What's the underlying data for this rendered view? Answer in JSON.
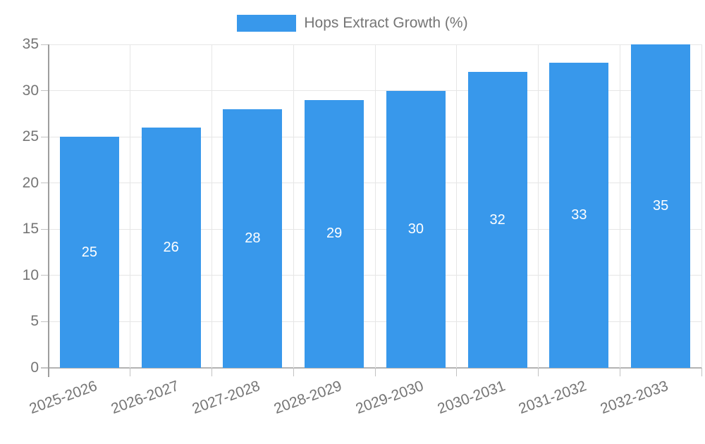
{
  "chart_data": {
    "type": "bar",
    "title": "",
    "legend": {
      "label": "Hops Extract Growth (%)",
      "position": "top"
    },
    "categories": [
      "2025-2026",
      "2026-2027",
      "2027-2028",
      "2028-2029",
      "2029-2030",
      "2030-2031",
      "2031-2032",
      "2032-2033"
    ],
    "series": [
      {
        "name": "Hops Extract Growth (%)",
        "values": [
          25,
          26,
          28,
          29,
          30,
          32,
          33,
          35
        ]
      }
    ],
    "bar_value_labels": [
      "25",
      "26",
      "28",
      "29",
      "30",
      "32",
      "33",
      "35"
    ],
    "xlabel": "",
    "ylabel": "",
    "ylim": [
      0,
      35
    ],
    "yticks": [
      0,
      5,
      10,
      15,
      20,
      25,
      30,
      35
    ],
    "grid": true,
    "value_label_position": "center",
    "colors": {
      "bar": "#3898eb",
      "bar_label": "#ffffff",
      "tick_text": "#757575",
      "legend_text": "#757575",
      "grid": "#e6e6e6",
      "baseline": "#b3b3b3",
      "axis_line": "#9e9e9e",
      "tick_mark": "#c2c2c2",
      "background": "#ffffff"
    }
  }
}
